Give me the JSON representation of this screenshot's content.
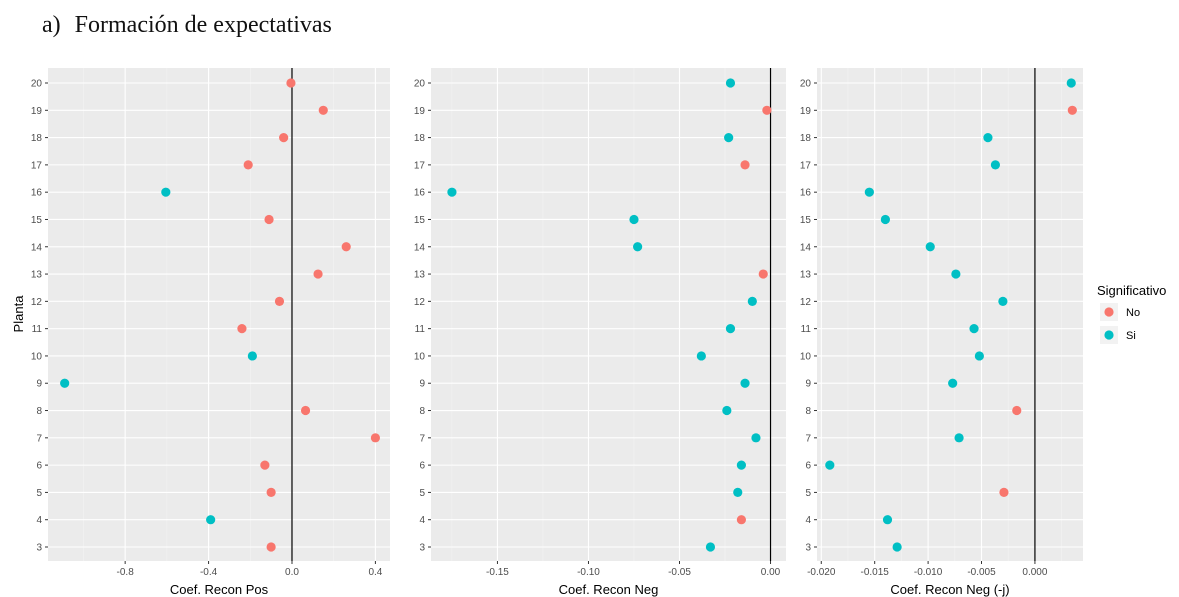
{
  "figure": {
    "panel_label": "a)",
    "title": "Formación de expectativas"
  },
  "colors": {
    "No": "#F8766D",
    "Si": "#00BFC4",
    "panel_bg": "#EBEBEB",
    "grid_major": "#FFFFFF",
    "grid_minor": "#F3F3F3",
    "zero_line": "#000000"
  },
  "chart_data": [
    {
      "type": "scatter",
      "xlabel": "Coef. Recon Pos",
      "ylabel": "Planta",
      "xlim": [
        -1.17,
        0.47
      ],
      "xticks": [
        -0.8,
        -0.4,
        0.0,
        0.4
      ],
      "xtick_labels": [
        "-0.8",
        "-0.4",
        "0.0",
        "0.4"
      ],
      "grid": true,
      "vline": 0,
      "points": [
        {
          "y": 20,
          "x": -0.005,
          "sig": "No"
        },
        {
          "y": 19,
          "x": 0.15,
          "sig": "No"
        },
        {
          "y": 18,
          "x": -0.04,
          "sig": "No"
        },
        {
          "y": 17,
          "x": -0.21,
          "sig": "No"
        },
        {
          "y": 16,
          "x": -0.605,
          "sig": "Si"
        },
        {
          "y": 15,
          "x": -0.11,
          "sig": "No"
        },
        {
          "y": 14,
          "x": 0.26,
          "sig": "No"
        },
        {
          "y": 13,
          "x": 0.125,
          "sig": "No"
        },
        {
          "y": 12,
          "x": -0.06,
          "sig": "No"
        },
        {
          "y": 11,
          "x": -0.24,
          "sig": "No"
        },
        {
          "y": 10,
          "x": -0.19,
          "sig": "Si"
        },
        {
          "y": 9,
          "x": -1.09,
          "sig": "Si"
        },
        {
          "y": 8,
          "x": 0.065,
          "sig": "No"
        },
        {
          "y": 7,
          "x": 0.4,
          "sig": "No"
        },
        {
          "y": 6,
          "x": -0.13,
          "sig": "No"
        },
        {
          "y": 5,
          "x": -0.1,
          "sig": "No"
        },
        {
          "y": 4,
          "x": -0.39,
          "sig": "Si"
        },
        {
          "y": 3,
          "x": -0.1,
          "sig": "No"
        }
      ]
    },
    {
      "type": "scatter",
      "xlabel": "Coef. Recon Neg",
      "ylabel": "",
      "xlim": [
        -0.1865,
        0.0085
      ],
      "xticks": [
        -0.15,
        -0.1,
        -0.05,
        0.0
      ],
      "xtick_labels": [
        "-0.15",
        "-0.10",
        "-0.05",
        "0.00"
      ],
      "grid": true,
      "vline": 0,
      "points": [
        {
          "y": 20,
          "x": -0.022,
          "sig": "Si"
        },
        {
          "y": 19,
          "x": -0.002,
          "sig": "No"
        },
        {
          "y": 18,
          "x": -0.023,
          "sig": "Si"
        },
        {
          "y": 17,
          "x": -0.014,
          "sig": "No"
        },
        {
          "y": 16,
          "x": -0.175,
          "sig": "Si"
        },
        {
          "y": 15,
          "x": -0.075,
          "sig": "Si"
        },
        {
          "y": 14,
          "x": -0.073,
          "sig": "Si"
        },
        {
          "y": 13,
          "x": -0.004,
          "sig": "No"
        },
        {
          "y": 12,
          "x": -0.01,
          "sig": "Si"
        },
        {
          "y": 11,
          "x": -0.022,
          "sig": "Si"
        },
        {
          "y": 10,
          "x": -0.038,
          "sig": "Si"
        },
        {
          "y": 9,
          "x": -0.014,
          "sig": "Si"
        },
        {
          "y": 8,
          "x": -0.024,
          "sig": "Si"
        },
        {
          "y": 7,
          "x": -0.008,
          "sig": "Si"
        },
        {
          "y": 6,
          "x": -0.016,
          "sig": "Si"
        },
        {
          "y": 5,
          "x": -0.018,
          "sig": "Si"
        },
        {
          "y": 4,
          "x": -0.016,
          "sig": "No"
        },
        {
          "y": 3,
          "x": -0.033,
          "sig": "Si"
        }
      ]
    },
    {
      "type": "scatter",
      "xlabel": "Coef. Recon Neg (-j)",
      "ylabel": "",
      "xlim": [
        -0.0204,
        0.0045
      ],
      "xticks": [
        -0.02,
        -0.015,
        -0.01,
        -0.005,
        0.0
      ],
      "xtick_labels": [
        "-0.020",
        "-0.015",
        "-0.010",
        "-0.005",
        "0.000"
      ],
      "grid": true,
      "vline": 0,
      "points": [
        {
          "y": 20,
          "x": 0.0034,
          "sig": "Si"
        },
        {
          "y": 19,
          "x": 0.0035,
          "sig": "No"
        },
        {
          "y": 18,
          "x": -0.0044,
          "sig": "Si"
        },
        {
          "y": 17,
          "x": -0.0037,
          "sig": "Si"
        },
        {
          "y": 16,
          "x": -0.0155,
          "sig": "Si"
        },
        {
          "y": 15,
          "x": -0.014,
          "sig": "Si"
        },
        {
          "y": 14,
          "x": -0.0098,
          "sig": "Si"
        },
        {
          "y": 13,
          "x": -0.0074,
          "sig": "Si"
        },
        {
          "y": 12,
          "x": -0.003,
          "sig": "Si"
        },
        {
          "y": 11,
          "x": -0.0057,
          "sig": "Si"
        },
        {
          "y": 10,
          "x": -0.0052,
          "sig": "Si"
        },
        {
          "y": 9,
          "x": -0.0077,
          "sig": "Si"
        },
        {
          "y": 8,
          "x": -0.0017,
          "sig": "No"
        },
        {
          "y": 7,
          "x": -0.0071,
          "sig": "Si"
        },
        {
          "y": 6,
          "x": -0.0192,
          "sig": "Si"
        },
        {
          "y": 5,
          "x": -0.0029,
          "sig": "No"
        },
        {
          "y": 4,
          "x": -0.0138,
          "sig": "Si"
        },
        {
          "y": 3,
          "x": -0.0129,
          "sig": "Si"
        }
      ]
    }
  ],
  "y_categories": [
    3,
    4,
    5,
    6,
    7,
    8,
    9,
    10,
    11,
    12,
    13,
    14,
    15,
    16,
    17,
    18,
    19,
    20
  ],
  "legend": {
    "title": "Significativo",
    "placement": "right",
    "items": [
      {
        "label": "No",
        "key": "No"
      },
      {
        "label": "Si",
        "key": "Si"
      }
    ]
  }
}
